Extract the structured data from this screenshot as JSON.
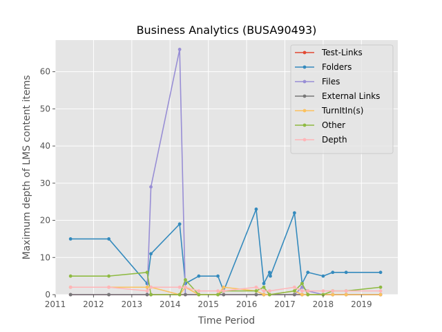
{
  "chart_data": {
    "type": "line",
    "title": "Business Analytics (BUSA90493)",
    "xlabel": "Time Period",
    "ylabel": "Maximum depth of LMS content items",
    "xlim": [
      2011.0,
      2019.95
    ],
    "ylim": [
      0,
      68.5
    ],
    "xticks": [
      "2011",
      "2012",
      "2013",
      "2014",
      "2015",
      "2016",
      "2017",
      "2018",
      "2019"
    ],
    "yticks": [
      "0",
      "10",
      "20",
      "30",
      "40",
      "50",
      "60"
    ],
    "grid": true,
    "legend_position": "top-right",
    "series": [
      {
        "name": "Test-Links",
        "color": "#E24A33",
        "x": [
          2011.4,
          2012.4,
          2013.4,
          2013.5,
          2014.25,
          2014.4,
          2014.75,
          2015.25,
          2015.4,
          2016.25,
          2016.45,
          2016.6,
          2017.25,
          2017.45,
          2017.6,
          2018.0,
          2018.25,
          2018.6,
          2019.5
        ],
        "y": [
          0,
          0,
          0,
          0,
          0,
          0,
          0,
          0,
          0,
          0,
          0,
          0,
          0,
          0,
          0,
          0,
          0,
          0,
          0
        ]
      },
      {
        "name": "Folders",
        "color": "#348ABD",
        "x": [
          2011.4,
          2012.4,
          2013.4,
          2013.5,
          2014.25,
          2014.4,
          2014.75,
          2015.25,
          2015.4,
          2016.25,
          2016.45,
          2016.6,
          2016.62,
          2017.25,
          2017.45,
          2017.6,
          2018.0,
          2018.25,
          2018.6,
          2019.5
        ],
        "y": [
          15,
          15,
          3,
          11,
          19,
          3,
          5,
          5,
          1,
          23,
          3,
          6,
          5,
          22,
          3,
          6,
          5,
          6,
          6,
          6
        ]
      },
      {
        "name": "Files",
        "color": "#988ED5",
        "x": [
          2011.4,
          2012.4,
          2013.4,
          2013.5,
          2014.25,
          2014.4,
          2014.75,
          2015.25,
          2015.4,
          2016.25,
          2016.45,
          2016.6,
          2017.25,
          2017.45,
          2017.6,
          2018.0,
          2018.25,
          2018.6,
          2019.5
        ],
        "y": [
          0,
          0,
          0,
          29,
          66,
          0,
          0,
          0,
          0,
          0,
          0,
          0,
          0,
          2,
          1,
          0,
          0,
          0,
          0
        ]
      },
      {
        "name": "External Links",
        "color": "#777777",
        "x": [
          2011.4,
          2012.4,
          2013.4,
          2013.5,
          2014.25,
          2014.4,
          2014.75,
          2015.25,
          2015.4,
          2016.25,
          2016.45,
          2016.6,
          2017.25,
          2017.45,
          2017.6,
          2018.0,
          2018.25,
          2018.6,
          2019.5
        ],
        "y": [
          0,
          0,
          0,
          0,
          0,
          0,
          0,
          0,
          0,
          0,
          0,
          0,
          0,
          0,
          0,
          0,
          0,
          0,
          0
        ]
      },
      {
        "name": "TurnItIn(s)",
        "color": "#FBC15E",
        "x": [
          2011.4,
          2012.4,
          2013.4,
          2013.5,
          2014.25,
          2014.4,
          2014.75,
          2015.25,
          2015.4,
          2016.25,
          2016.45,
          2016.6,
          2017.25,
          2017.45,
          2017.6,
          2018.0,
          2018.25,
          2018.6,
          2019.5
        ],
        "y": [
          2,
          2,
          2,
          2,
          0,
          2,
          0,
          0,
          2,
          1,
          0,
          0,
          1,
          0,
          0,
          0,
          0,
          0,
          0
        ]
      },
      {
        "name": "Other",
        "color": "#8EBA42",
        "x": [
          2011.4,
          2012.4,
          2013.4,
          2013.5,
          2014.25,
          2014.4,
          2014.75,
          2015.25,
          2015.4,
          2016.25,
          2016.45,
          2016.6,
          2017.25,
          2017.45,
          2017.6,
          2018.0,
          2018.25,
          2018.6,
          2019.5
        ],
        "y": [
          5,
          5,
          6,
          0,
          0,
          4,
          0,
          0,
          1,
          1,
          2,
          0,
          1,
          3,
          0,
          0,
          1,
          1,
          2
        ]
      },
      {
        "name": "Depth",
        "color": "#FFB5B8",
        "x": [
          2011.4,
          2012.4,
          2013.4,
          2013.5,
          2014.25,
          2014.4,
          2014.75,
          2015.25,
          2015.4,
          2016.25,
          2016.45,
          2016.6,
          2017.25,
          2017.45,
          2017.6,
          2018.0,
          2018.25,
          2018.6,
          2019.5
        ],
        "y": [
          2,
          2,
          1,
          2,
          2,
          2,
          1,
          1,
          1,
          2,
          1,
          1,
          2,
          1,
          1,
          1,
          1,
          1,
          1
        ]
      }
    ]
  }
}
